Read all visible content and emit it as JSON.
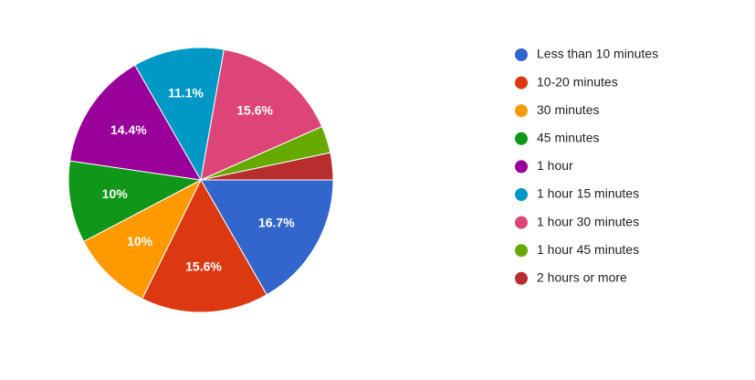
{
  "chart_data": {
    "type": "pie",
    "categories": [
      "Less than 10 minutes",
      "10-20 minutes",
      "30 minutes",
      "45 minutes",
      "1 hour",
      "1 hour 15 minutes",
      "1 hour 30 minutes",
      "1 hour 45 minutes",
      "2 hours or more"
    ],
    "values": [
      16.7,
      15.6,
      10,
      10,
      14.4,
      11.1,
      15.6,
      3.3,
      3.3
    ],
    "value_labels": [
      "16.7%",
      "15.6%",
      "10%",
      "10%",
      "14.4%",
      "11.1%",
      "15.6%",
      null,
      null
    ],
    "colors": [
      "#3366cc",
      "#dc3912",
      "#ff9900",
      "#109618",
      "#990099",
      "#0099c6",
      "#dd4477",
      "#66aa00",
      "#b82e2e"
    ],
    "legend": "right"
  }
}
